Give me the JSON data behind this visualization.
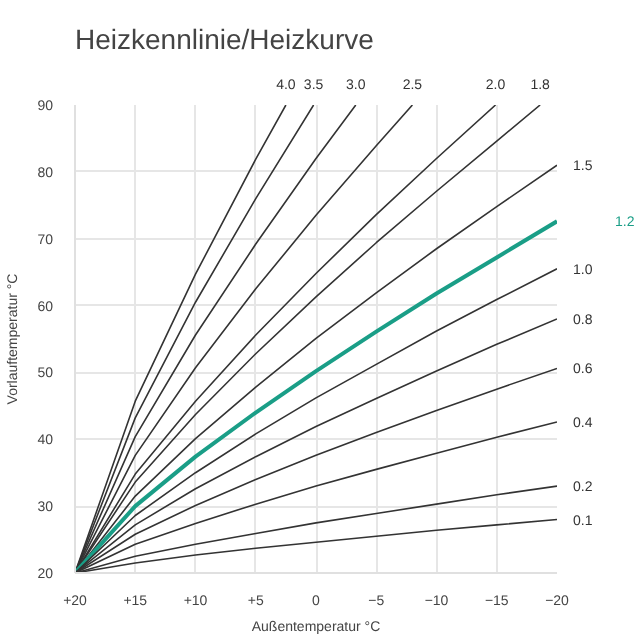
{
  "chart_data": {
    "type": "line",
    "title": "Heizkennlinie/Heizkurve",
    "xlabel": "Außentemperatur °C",
    "ylabel": "Vorlauftemperatur °C",
    "xlim": [
      20,
      -20
    ],
    "ylim": [
      20,
      90
    ],
    "xticks": [
      {
        "value": 20,
        "label": "+20"
      },
      {
        "value": 15,
        "label": "+15"
      },
      {
        "value": 10,
        "label": "+10"
      },
      {
        "value": 5,
        "label": "+5"
      },
      0,
      -5,
      -10,
      -15,
      -20
    ],
    "yticks": [
      20,
      30,
      40,
      50,
      60,
      70,
      80,
      90
    ],
    "grid": true,
    "line_style": "solid",
    "series": [
      {
        "name": "4.0",
        "color": "#333333",
        "x": [
          20,
          15,
          10,
          5,
          2.5
        ],
        "values": [
          20,
          45.7,
          64.7,
          81.9,
          90
        ]
      },
      {
        "name": "3.5",
        "color": "#333333",
        "x": [
          20,
          15,
          10,
          5,
          0.2
        ],
        "values": [
          20,
          43.2,
          60.5,
          76.0,
          90
        ]
      },
      {
        "name": "3.0",
        "color": "#333333",
        "x": [
          20,
          15,
          10,
          5,
          0,
          -3.3
        ],
        "values": [
          20,
          40.4,
          55.6,
          69.2,
          82.0,
          90
        ]
      },
      {
        "name": "2.5",
        "color": "#333333",
        "x": [
          20,
          15,
          10,
          5,
          0,
          -5,
          -8
        ],
        "values": [
          20,
          37.6,
          50.7,
          62.5,
          73.5,
          83.9,
          90
        ]
      },
      {
        "name": "2.0",
        "color": "#333333",
        "x": [
          20,
          15,
          10,
          5,
          0,
          -5,
          -10,
          -14.9
        ],
        "values": [
          20,
          34.8,
          45.7,
          55.6,
          64.8,
          73.6,
          82.0,
          90
        ]
      },
      {
        "name": "1.8",
        "color": "#333333",
        "x": [
          20,
          15,
          10,
          5,
          0,
          -5,
          -10,
          -15,
          -18.6
        ],
        "values": [
          20,
          33.6,
          43.7,
          52.8,
          61.3,
          69.4,
          77.1,
          84.6,
          90
        ]
      },
      {
        "name": "1.5",
        "color": "#333333",
        "x": [
          20,
          15,
          10,
          5,
          0,
          -5,
          -10,
          -15,
          -20
        ],
        "values": [
          20,
          31.5,
          40.1,
          47.8,
          55.1,
          61.9,
          68.5,
          74.8,
          81.0
        ]
      },
      {
        "name": "1.2",
        "color": "#1a9e87",
        "x": [
          20,
          15,
          10,
          5,
          0,
          -5,
          -10,
          -15,
          -20
        ],
        "values": [
          20,
          30.0,
          37.4,
          44.0,
          50.2,
          56.1,
          61.8,
          67.2,
          72.6
        ]
      },
      {
        "name": "1.0",
        "color": "#333333",
        "x": [
          20,
          15,
          10,
          5,
          0,
          -5,
          -10,
          -15,
          -20
        ],
        "values": [
          20,
          28.6,
          35.0,
          40.8,
          46.2,
          51.2,
          56.2,
          60.9,
          65.5
        ]
      },
      {
        "name": "0.8",
        "color": "#333333",
        "x": [
          20,
          15,
          10,
          5,
          0,
          -5,
          -10,
          -15,
          -20
        ],
        "values": [
          20,
          27.2,
          32.6,
          37.4,
          41.9,
          46.1,
          50.2,
          54.2,
          58.0
        ]
      },
      {
        "name": "0.6",
        "color": "#333333",
        "x": [
          20,
          15,
          10,
          5,
          0,
          -5,
          -10,
          -15,
          -20
        ],
        "values": [
          20,
          25.8,
          30.1,
          34.0,
          37.6,
          41.0,
          44.3,
          47.5,
          50.6
        ]
      },
      {
        "name": "0.4",
        "color": "#333333",
        "x": [
          20,
          15,
          10,
          5,
          0,
          -5,
          -10,
          -15,
          -20
        ],
        "values": [
          20,
          24.3,
          27.4,
          30.3,
          33.0,
          35.5,
          37.9,
          40.3,
          42.6
        ]
      },
      {
        "name": "0.2",
        "color": "#333333",
        "x": [
          20,
          15,
          10,
          5,
          0,
          -5,
          -10,
          -15,
          -20
        ],
        "values": [
          20,
          22.5,
          24.3,
          25.9,
          27.5,
          28.9,
          30.3,
          31.7,
          33.0
        ]
      },
      {
        "name": "0.1",
        "color": "#333333",
        "x": [
          20,
          15,
          10,
          5,
          0,
          -5,
          -10,
          -15,
          -20
        ],
        "values": [
          20,
          21.5,
          22.7,
          23.7,
          24.6,
          25.5,
          26.4,
          27.2,
          28.0
        ]
      }
    ]
  }
}
